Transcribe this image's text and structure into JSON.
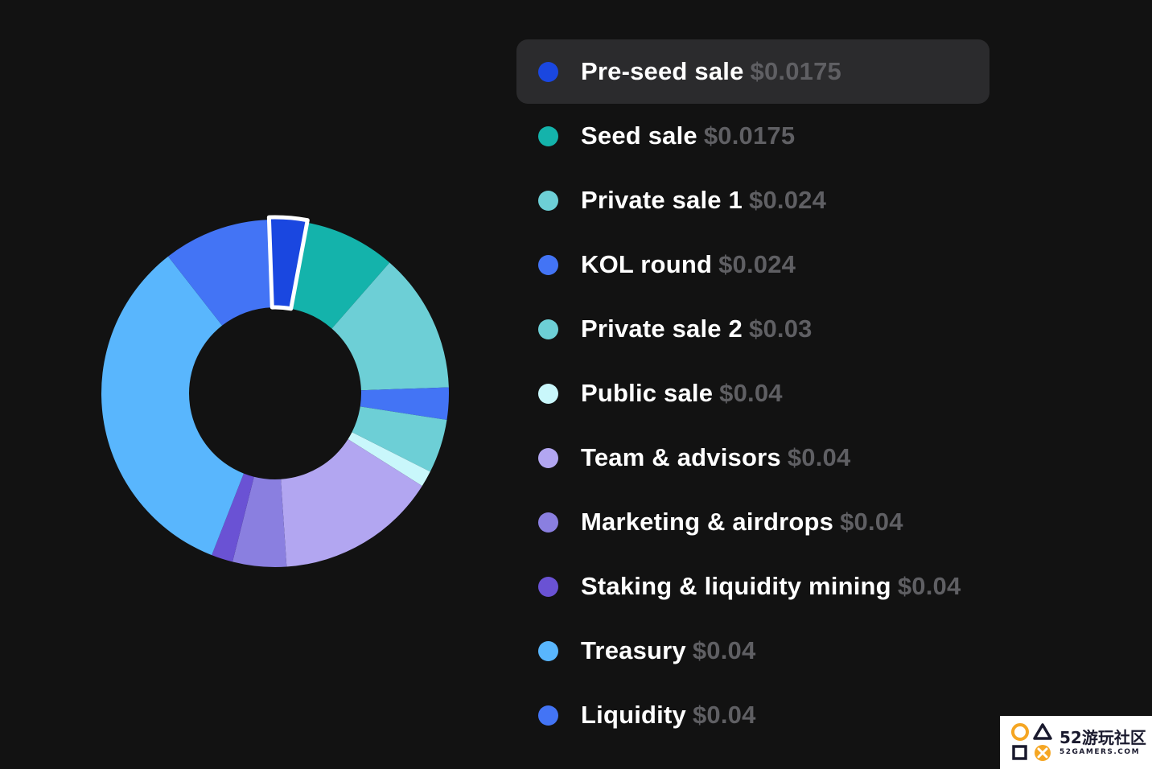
{
  "chart_data": {
    "type": "pie",
    "style": "donut",
    "start_angle_deg": -2,
    "highlighted_index": 0,
    "slices": [
      {
        "name": "Pre-seed sale",
        "price": "$0.0175",
        "value": 3.5,
        "color": "#1a47e0"
      },
      {
        "name": "Seed sale",
        "price": "$0.0175",
        "value": 8.5,
        "color": "#14b3ab"
      },
      {
        "name": "Private sale 1",
        "price": "$0.024",
        "value": 13,
        "color": "#6dcfd6"
      },
      {
        "name": "KOL round",
        "price": "$0.024",
        "value": 3,
        "color": "#4374f5"
      },
      {
        "name": "Private sale 2",
        "price": "$0.03",
        "value": 5,
        "color": "#6dcfd6"
      },
      {
        "name": "Public sale",
        "price": "$0.04",
        "value": 1.5,
        "color": "#c9f7fb"
      },
      {
        "name": "Team & advisors",
        "price": "$0.04",
        "value": 15,
        "color": "#b2a6f1"
      },
      {
        "name": "Marketing & airdrops",
        "price": "$0.04",
        "value": 5,
        "color": "#8a7fe0"
      },
      {
        "name": "Staking & liquidity mining",
        "price": "$0.04",
        "value": 2,
        "color": "#6a52d4"
      },
      {
        "name": "Treasury",
        "price": "$0.04",
        "value": 33.5,
        "color": "#59b6fd"
      },
      {
        "name": "Liquidity",
        "price": "$0.04",
        "value": 10,
        "color": "#4374f5"
      }
    ]
  },
  "watermark": {
    "brand": "52游玩社区",
    "domain": "52GAMERS.COM"
  }
}
